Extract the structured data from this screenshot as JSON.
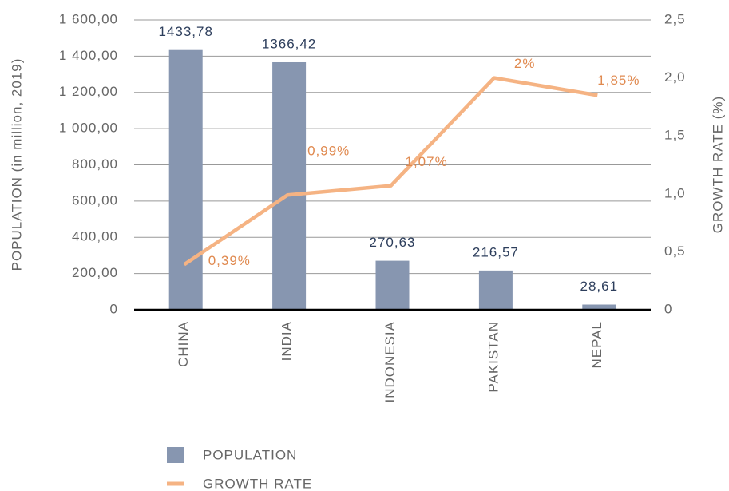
{
  "chart_data": {
    "type": "bar_line",
    "categories": [
      "CHINA",
      "INDIA",
      "INDONESIA",
      "PAKISTAN",
      "NEPAL"
    ],
    "series": [
      {
        "name": "POPULATION",
        "color": "#8796b0",
        "values": [
          1433.78,
          1366.42,
          270.63,
          216.57,
          28.61
        ],
        "value_labels": [
          "1433,78",
          "1366,42",
          "270,63",
          "216,57",
          "28,61"
        ]
      },
      {
        "name": "GROWTH RATE",
        "color": "#f5b383",
        "axis": "y2",
        "values": [
          0.39,
          0.99,
          1.07,
          2,
          1.85
        ],
        "value_labels": [
          "0,39%",
          "0,99%",
          "1,07%",
          "2%",
          "1,85%"
        ]
      }
    ],
    "ylabel": "POPULATION (in million, 2019)",
    "y2label": "GROWTH RATE (%)",
    "ylim": [
      0,
      1600
    ],
    "yticks": [
      0,
      {
        "value": 200,
        "label": "200,00"
      },
      {
        "value": 400,
        "label": "400,00"
      },
      {
        "value": 600,
        "label": "600,00"
      },
      {
        "value": 800,
        "label": "800,00"
      },
      {
        "value": 1000,
        "label": "1 000,00"
      },
      {
        "value": 1200,
        "label": "1 200,00"
      },
      {
        "value": 1400,
        "label": "1 400,00"
      },
      {
        "value": 1600,
        "label": "1 600,00"
      }
    ],
    "y2lim": [
      0,
      2.5
    ],
    "y2ticks": [
      0,
      {
        "value": 0.5,
        "label": "0,5"
      },
      {
        "value": 1,
        "label": "1,0"
      },
      {
        "value": 1.5,
        "label": "1,5"
      },
      {
        "value": 2,
        "label": "2,0"
      },
      {
        "value": 2.5,
        "label": "2,5"
      }
    ],
    "grid": true
  }
}
